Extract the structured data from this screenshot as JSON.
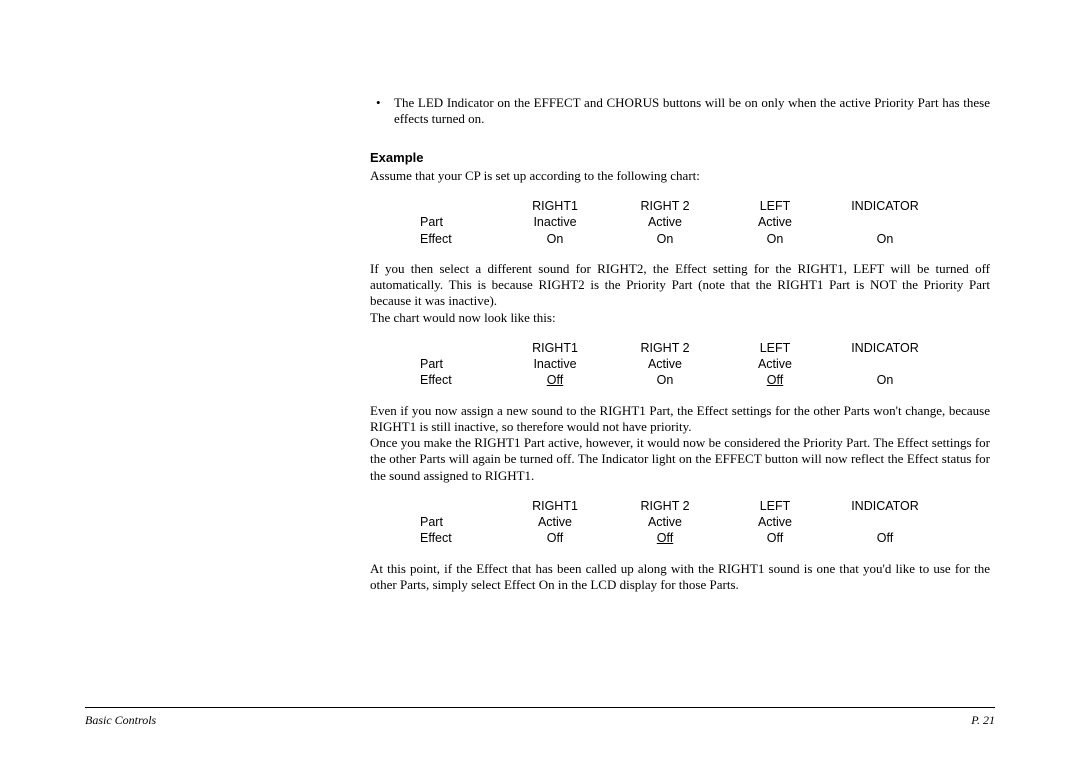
{
  "bullet": "The LED Indicator on the EFFECT and CHORUS buttons will be on only when the active Priority Part has these effects turned on.",
  "example_heading": "Example",
  "intro": "Assume that your CP is set up according to the following chart:",
  "headers": {
    "c1": "RIGHT1",
    "c2": "RIGHT 2",
    "c3": "LEFT",
    "c4": "INDICATOR"
  },
  "row_labels": {
    "part": "Part",
    "effect": "Effect"
  },
  "chart1": {
    "part": {
      "c1": "Inactive",
      "c2": "Active",
      "c3": "Active",
      "c4": ""
    },
    "effect": {
      "c1": "On",
      "c2": "On",
      "c3": "On",
      "c4": "On"
    }
  },
  "para1a": "If you then select a different sound for RIGHT2, the Effect setting for the RIGHT1, LEFT will be turned off automatically.  This is because RIGHT2 is the Priority Part (note that the RIGHT1 Part is NOT the Priority Part because it was inactive).",
  "para1b": "The chart would now look like this:",
  "chart2": {
    "part": {
      "c1": "Inactive",
      "c2": "Active",
      "c3": "Active",
      "c4": ""
    },
    "effect": {
      "c1": "Off",
      "c2": "On",
      "c3": "Off",
      "c4": "On"
    },
    "underline": {
      "c1": true,
      "c3": true
    }
  },
  "para2a": "Even if you now assign a new sound to the RIGHT1 Part, the Effect settings for the other Parts won't change, because RIGHT1 is still inactive, so therefore would not have priority.",
  "para2b": "Once you make the RIGHT1 Part active, however, it would now be considered the Priority Part.  The Effect settings for the other Parts will again be turned off.  The Indicator light on the EFFECT button will now reflect the Effect status for the sound assigned to RIGHT1.",
  "chart3": {
    "part": {
      "c1": "Active",
      "c2": "Active",
      "c3": "Active",
      "c4": ""
    },
    "effect": {
      "c1": "Off",
      "c2": "Off",
      "c3": "Off",
      "c4": "Off"
    },
    "underline": {
      "c2": true
    }
  },
  "para3": "At this point, if the Effect that has been called up along with the RIGHT1 sound is one that you'd like to use for the other Parts, simply select Effect On in the LCD display for those Parts.",
  "footer": {
    "left": "Basic Controls",
    "right": "P. 21"
  }
}
